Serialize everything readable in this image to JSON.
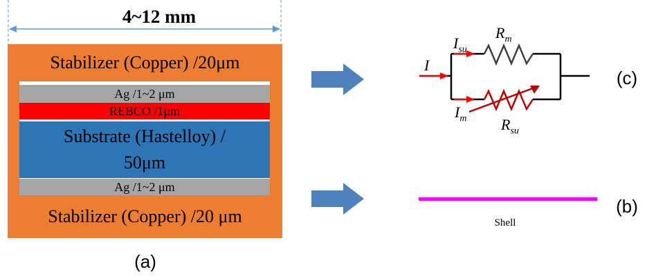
{
  "tape": {
    "width_label": "4~12 mm",
    "layers": {
      "stabilizer_top": "Stabilizer (Copper) /20μm",
      "ag_top": "Ag /1~2 μm",
      "rebco": "REBCO /1μm",
      "substrate_line1": "Substrate (Hastelloy) /",
      "substrate_line2": "50μm",
      "ag_bottom": "Ag /1~2 μm",
      "stabilizer_bottom": "Stabilizer (Copper) /20 μm"
    },
    "caption": "(a)"
  },
  "circuit": {
    "caption": "(c)",
    "labels": {
      "current_total": "I",
      "current_su": "I",
      "current_su_sub": "su",
      "current_m": "I",
      "current_m_sub": "m",
      "resistor_m": "R",
      "resistor_m_sub": "m",
      "resistor_su": "R",
      "resistor_su_sub": "su"
    }
  },
  "shell": {
    "label": "Shell",
    "caption": "(b)"
  },
  "colors": {
    "copper": "#ED7D31",
    "silver": "#A6A6A6",
    "rebco": "#FF0000",
    "substrate": "#2E75B6",
    "arrow": "#4F81BD",
    "dimension": "#5B9BD5",
    "shell": "#FF00FF",
    "resistor_su": "#C00000",
    "resistor_m": "#404040",
    "current_arrow": "#FF0000"
  }
}
